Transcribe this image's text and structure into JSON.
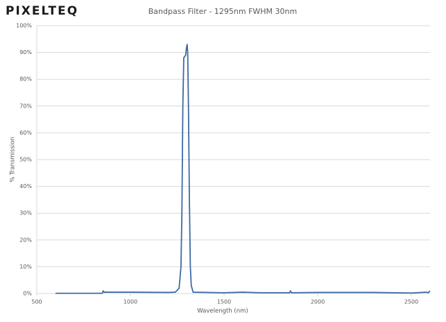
{
  "logo": "PIXELTEQ",
  "chart_data": {
    "type": "line",
    "title": "Bandpass Filter - 1295nm FWHM 30nm",
    "x_label": "Wavelength (nm)",
    "y_label": "% Transmission",
    "xlim": [
      500,
      2600
    ],
    "xticks": [
      500,
      1000,
      1500,
      2000,
      2500
    ],
    "ylim": [
      0,
      100
    ],
    "yticks": [
      {
        "value": 0,
        "label": "0%"
      },
      {
        "value": 10,
        "label": "10%"
      },
      {
        "value": 20,
        "label": "20%"
      },
      {
        "value": 30,
        "label": "30%"
      },
      {
        "value": 40,
        "label": "40%"
      },
      {
        "value": 50,
        "label": "50%"
      },
      {
        "value": 60,
        "label": "60%"
      },
      {
        "value": 70,
        "label": "70%"
      },
      {
        "value": 80,
        "label": "80%"
      },
      {
        "value": 90,
        "label": "90%"
      },
      {
        "value": 100,
        "label": "100%"
      }
    ],
    "grid": true,
    "color": "#3d6aa3",
    "x": [
      600,
      850,
      855,
      860,
      1000,
      1200,
      1240,
      1260,
      1270,
      1275,
      1280,
      1285,
      1290,
      1295,
      1300,
      1303,
      1306,
      1310,
      1315,
      1320,
      1325,
      1335,
      1500,
      1600,
      1700,
      1850,
      1855,
      1860,
      2000,
      2300,
      2500,
      2580,
      2590,
      2600
    ],
    "values": [
      0.1,
      0.1,
      1.0,
      0.5,
      0.5,
      0.4,
      0.5,
      2,
      10,
      30,
      70,
      88,
      88.5,
      89,
      92,
      93,
      90,
      70,
      35,
      10,
      3,
      0.5,
      0.3,
      0.5,
      0.3,
      0.3,
      1.0,
      0.3,
      0.4,
      0.4,
      0.2,
      0.5,
      0.3,
      1.0
    ]
  }
}
